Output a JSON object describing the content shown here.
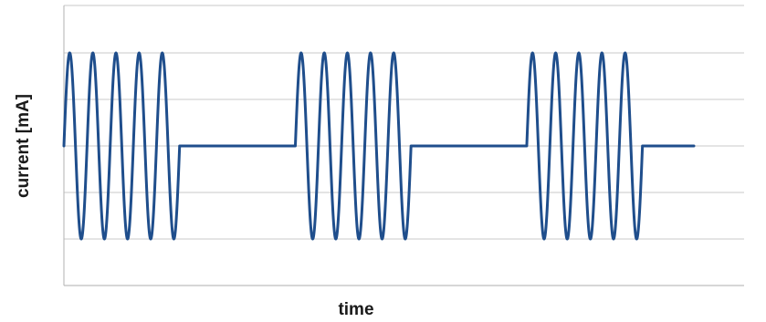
{
  "chart_data": {
    "type": "line",
    "title": "",
    "xlabel": "time",
    "ylabel": "current [mA]",
    "ylim": [
      -1.5,
      1.5
    ],
    "xlim": [
      0,
      27
    ],
    "grid": true,
    "legend": "none",
    "series": [
      {
        "color": "#1f4e8c",
        "bursts": [
          {
            "start": 0,
            "end": 4.5,
            "cycles": 5,
            "amplitude": 1.0
          },
          {
            "start": 9.0,
            "end": 13.5,
            "cycles": 5,
            "amplitude": 1.0
          },
          {
            "start": 18.0,
            "end": 22.5,
            "cycles": 5,
            "amplitude": 1.0
          }
        ],
        "baseline": 0,
        "end": 24.5
      }
    ]
  }
}
